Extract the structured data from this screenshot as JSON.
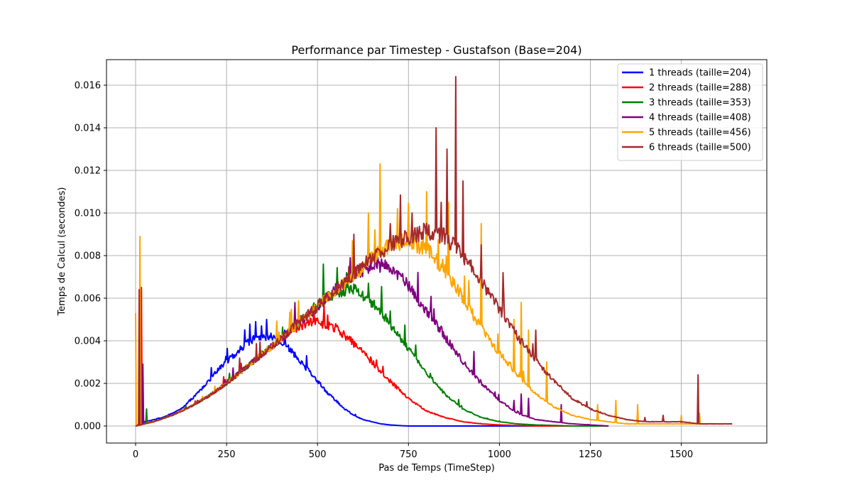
{
  "chart_data": {
    "type": "line",
    "title": "Performance par Timestep - Gustafson (Base=204)",
    "xlabel": "Pas de Temps (TimeStep)",
    "ylabel": "Temps de Calcul (secondes)",
    "xlim": [
      -80,
      1735
    ],
    "ylim": [
      -0.0008,
      0.0172
    ],
    "xticks": [
      0,
      250,
      500,
      750,
      1000,
      1250,
      1500
    ],
    "xtick_labels": [
      "0",
      "250",
      "500",
      "750",
      "1000",
      "1250",
      "1500"
    ],
    "yticks": [
      0.0,
      0.002,
      0.004,
      0.006,
      0.008,
      0.01,
      0.012,
      0.014,
      0.016
    ],
    "ytick_labels": [
      "0.000",
      "0.002",
      "0.004",
      "0.006",
      "0.008",
      "0.010",
      "0.012",
      "0.014",
      "0.016"
    ],
    "grid": true,
    "legend_position": "upper right",
    "series": [
      {
        "name": "1 threads (taille=204)",
        "color": "#0000ff",
        "x": [
          0,
          25,
          50,
          75,
          100,
          125,
          150,
          175,
          200,
          225,
          250,
          275,
          300,
          325,
          350,
          375,
          400,
          425,
          450,
          475,
          500,
          525,
          550,
          575,
          600,
          625,
          650,
          675,
          700,
          725,
          750,
          800,
          850,
          900,
          1000,
          1100,
          1200
        ],
        "y": [
          0.0,
          0.0002,
          0.0003,
          0.0004,
          0.0006,
          0.0008,
          0.0012,
          0.0016,
          0.0021,
          0.0026,
          0.003,
          0.0034,
          0.0038,
          0.0041,
          0.0042,
          0.0042,
          0.004,
          0.0036,
          0.0031,
          0.0026,
          0.0021,
          0.0016,
          0.0012,
          0.0008,
          0.0005,
          0.0003,
          0.0002,
          0.0001,
          5e-05,
          2e-05,
          0.0,
          0.0,
          0.0,
          0.0,
          0.0,
          0.0,
          0.0
        ],
        "spikes": [
          [
            330,
            0.0049
          ],
          [
            360,
            0.005
          ],
          [
            345,
            0.0047
          ],
          [
            410,
            0.0045
          ],
          [
            470,
            0.0033
          ],
          [
            260,
            0.0033
          ],
          [
            290,
            0.0036
          ]
        ]
      },
      {
        "name": "2 threads (taille=288)",
        "color": "#ff0000",
        "x": [
          0,
          50,
          100,
          150,
          200,
          250,
          300,
          350,
          400,
          450,
          500,
          550,
          600,
          650,
          700,
          750,
          800,
          850,
          900,
          950,
          1000,
          1100,
          1200
        ],
        "y": [
          0.0,
          0.0002,
          0.0005,
          0.0009,
          0.0014,
          0.002,
          0.0027,
          0.0034,
          0.0041,
          0.0047,
          0.0049,
          0.0046,
          0.0039,
          0.003,
          0.0021,
          0.0013,
          0.0007,
          0.0004,
          0.0002,
          0.0001,
          5e-05,
          0.0,
          0.0
        ],
        "spikes": [
          [
            15,
            0.0065
          ],
          [
            550,
            0.0048
          ],
          [
            600,
            0.0037
          ],
          [
            680,
            0.0028
          ],
          [
            490,
            0.0055
          ]
        ]
      },
      {
        "name": "3 threads (taille=353)",
        "color": "#008000",
        "x": [
          0,
          50,
          100,
          150,
          200,
          250,
          300,
          350,
          400,
          450,
          500,
          550,
          600,
          650,
          700,
          750,
          800,
          850,
          900,
          950,
          1000,
          1050,
          1100,
          1200,
          1300
        ],
        "y": [
          0.0,
          0.0002,
          0.0005,
          0.0009,
          0.0014,
          0.002,
          0.0027,
          0.0034,
          0.0041,
          0.0049,
          0.0057,
          0.0063,
          0.0064,
          0.0058,
          0.0048,
          0.0036,
          0.0025,
          0.0015,
          0.0008,
          0.0004,
          0.0002,
          0.0001,
          5e-05,
          0.0,
          0.0
        ],
        "spikes": [
          [
            515,
            0.0076
          ],
          [
            580,
            0.0072
          ],
          [
            640,
            0.0067
          ],
          [
            700,
            0.0054
          ],
          [
            770,
            0.0038
          ],
          [
            30,
            0.0008
          ]
        ]
      },
      {
        "name": "4 threads (taille=408)",
        "color": "#800080",
        "x": [
          0,
          50,
          100,
          150,
          200,
          250,
          300,
          350,
          400,
          450,
          500,
          550,
          600,
          650,
          700,
          750,
          800,
          850,
          900,
          950,
          1000,
          1050,
          1100,
          1150,
          1200,
          1300
        ],
        "y": [
          0.0,
          0.0002,
          0.0005,
          0.0009,
          0.0014,
          0.002,
          0.0027,
          0.0034,
          0.0041,
          0.0049,
          0.0056,
          0.0064,
          0.0071,
          0.0076,
          0.0075,
          0.0066,
          0.0054,
          0.0042,
          0.003,
          0.002,
          0.0012,
          0.0006,
          0.0003,
          0.0002,
          0.0001,
          0.0
        ],
        "spikes": [
          [
            20,
            0.0029
          ],
          [
            590,
            0.0079
          ],
          [
            660,
            0.0082
          ],
          [
            820,
            0.0055
          ],
          [
            930,
            0.0035
          ],
          [
            1060,
            0.0015
          ],
          [
            1170,
            0.001
          ],
          [
            1040,
            0.0012
          ],
          [
            1080,
            0.0013
          ]
        ]
      },
      {
        "name": "5 threads (taille=456)",
        "color": "#ffa500",
        "x": [
          0,
          50,
          100,
          150,
          200,
          250,
          300,
          350,
          400,
          450,
          500,
          550,
          600,
          650,
          700,
          750,
          800,
          850,
          900,
          950,
          1000,
          1050,
          1100,
          1150,
          1200,
          1250,
          1300,
          1350,
          1400,
          1500,
          1600
        ],
        "y": [
          0.0,
          0.0002,
          0.0005,
          0.0009,
          0.0014,
          0.002,
          0.0027,
          0.0034,
          0.0041,
          0.0049,
          0.0056,
          0.0064,
          0.0071,
          0.0079,
          0.0085,
          0.0087,
          0.0083,
          0.0073,
          0.006,
          0.0046,
          0.0034,
          0.0024,
          0.0015,
          0.0009,
          0.0005,
          0.0003,
          0.0002,
          0.0001,
          0.0001,
          0.0001,
          0.0001
        ],
        "spikes": [
          [
            0,
            0.0053
          ],
          [
            12,
            0.0089
          ],
          [
            672,
            0.0123
          ],
          [
            640,
            0.01
          ],
          [
            720,
            0.0102
          ],
          [
            800,
            0.011
          ],
          [
            860,
            0.0105
          ],
          [
            950,
            0.0095
          ],
          [
            1040,
            0.005
          ],
          [
            1060,
            0.0058
          ],
          [
            1080,
            0.0045
          ],
          [
            1130,
            0.003
          ],
          [
            1270,
            0.001
          ],
          [
            1320,
            0.0012
          ],
          [
            1380,
            0.001
          ],
          [
            1500,
            0.0005
          ],
          [
            1550,
            0.0006
          ]
        ]
      },
      {
        "name": "6 threads (taille=500)",
        "color": "#a52a2a",
        "x": [
          0,
          50,
          100,
          150,
          200,
          250,
          300,
          350,
          400,
          450,
          500,
          550,
          600,
          650,
          700,
          750,
          800,
          850,
          900,
          950,
          1000,
          1050,
          1100,
          1150,
          1200,
          1250,
          1300,
          1350,
          1400,
          1450,
          1500,
          1550,
          1600,
          1640
        ],
        "y": [
          0.0,
          0.0002,
          0.0005,
          0.0009,
          0.0014,
          0.002,
          0.0027,
          0.0034,
          0.0041,
          0.0049,
          0.0056,
          0.0064,
          0.0071,
          0.0079,
          0.0085,
          0.0089,
          0.0092,
          0.0089,
          0.008,
          0.0068,
          0.0055,
          0.0042,
          0.0031,
          0.0021,
          0.0013,
          0.0008,
          0.0005,
          0.0003,
          0.0002,
          0.0002,
          0.0002,
          0.0001,
          0.0001,
          0.0001
        ],
        "spikes": [
          [
            10,
            0.0064
          ],
          [
            825,
            0.014
          ],
          [
            855,
            0.013
          ],
          [
            880,
            0.0164
          ],
          [
            900,
            0.0115
          ],
          [
            840,
            0.0105
          ],
          [
            600,
            0.009
          ],
          [
            700,
            0.0095
          ],
          [
            760,
            0.01
          ],
          [
            950,
            0.0085
          ],
          [
            1010,
            0.0072
          ],
          [
            1100,
            0.0045
          ],
          [
            1545,
            0.0024
          ],
          [
            1450,
            0.0005
          ],
          [
            1400,
            0.0004
          ]
        ]
      }
    ]
  }
}
